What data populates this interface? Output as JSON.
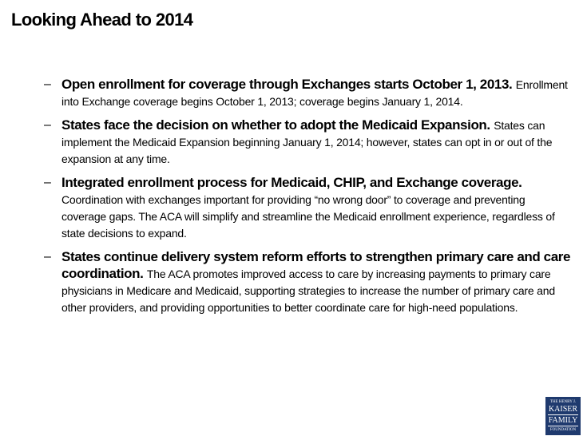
{
  "header": {
    "title": "Looking Ahead to 2014"
  },
  "bullets": [
    {
      "marker": "–",
      "lead": "Open enrollment for coverage through Exchanges starts October 1, 2013.",
      "body": "Enrollment into Exchange coverage begins October 1, 2013; coverage begins January 1, 2014."
    },
    {
      "marker": "–",
      "lead": "States face the decision on whether to adopt the Medicaid Expansion.",
      "body": "States can implement the Medicaid Expansion beginning January 1, 2014; however, states can opt in or out of the expansion at any time."
    },
    {
      "marker": "–",
      "lead": "Integrated enrollment process for Medicaid, CHIP, and Exchange coverage.",
      "body": "Coordination with exchanges important for providing “no wrong door” to coverage and preventing coverage gaps. The ACA will simplify and streamline the Medicaid enrollment experience, regardless of state decisions to expand."
    },
    {
      "marker": "–",
      "lead": "States continue delivery system reform efforts to strengthen primary care and care coordination.",
      "body": "The ACA promotes improved access to care by increasing payments to primary care physicians in Medicare and Medicaid, supporting strategies to increase the number of primary care and other providers, and providing opportunities to better coordinate care for high-need populations."
    }
  ],
  "logo": {
    "line1": "THE HENRY J.",
    "line2": "KAISER",
    "line3": "FAMILY",
    "line4": "FOUNDATION"
  }
}
